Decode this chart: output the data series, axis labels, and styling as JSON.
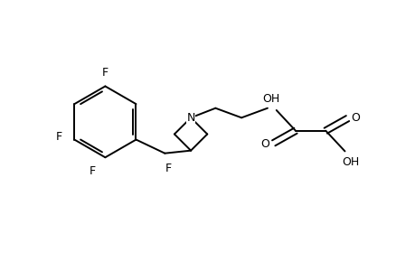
{
  "background_color": "#ffffff",
  "line_color": "#000000",
  "lw": 1.4,
  "fs": 9,
  "xlim": [
    -0.5,
    5.5
  ],
  "ylim": [
    -1.1,
    1.6
  ],
  "figsize": [
    4.6,
    3.0
  ],
  "dpi": 100
}
